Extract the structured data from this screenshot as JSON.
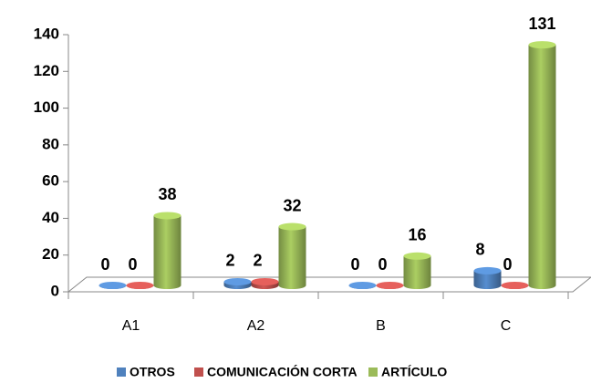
{
  "chart_data": {
    "type": "bar3d",
    "categories": [
      "A1",
      "A2",
      "B",
      "C"
    ],
    "series": [
      {
        "name": "OTROS",
        "color": "#4f81bd",
        "values": [
          0,
          2,
          0,
          8
        ]
      },
      {
        "name": "COMUNICACIÓN CORTA",
        "color": "#c0504d",
        "values": [
          0,
          2,
          0,
          0
        ]
      },
      {
        "name": "ARTÍCULO",
        "color": "#9bbb59",
        "values": [
          38,
          32,
          16,
          131
        ]
      }
    ],
    "ylim": [
      0,
      140
    ],
    "yticks": [
      0,
      20,
      40,
      60,
      80,
      100,
      120,
      140
    ],
    "legend": "bottom"
  }
}
